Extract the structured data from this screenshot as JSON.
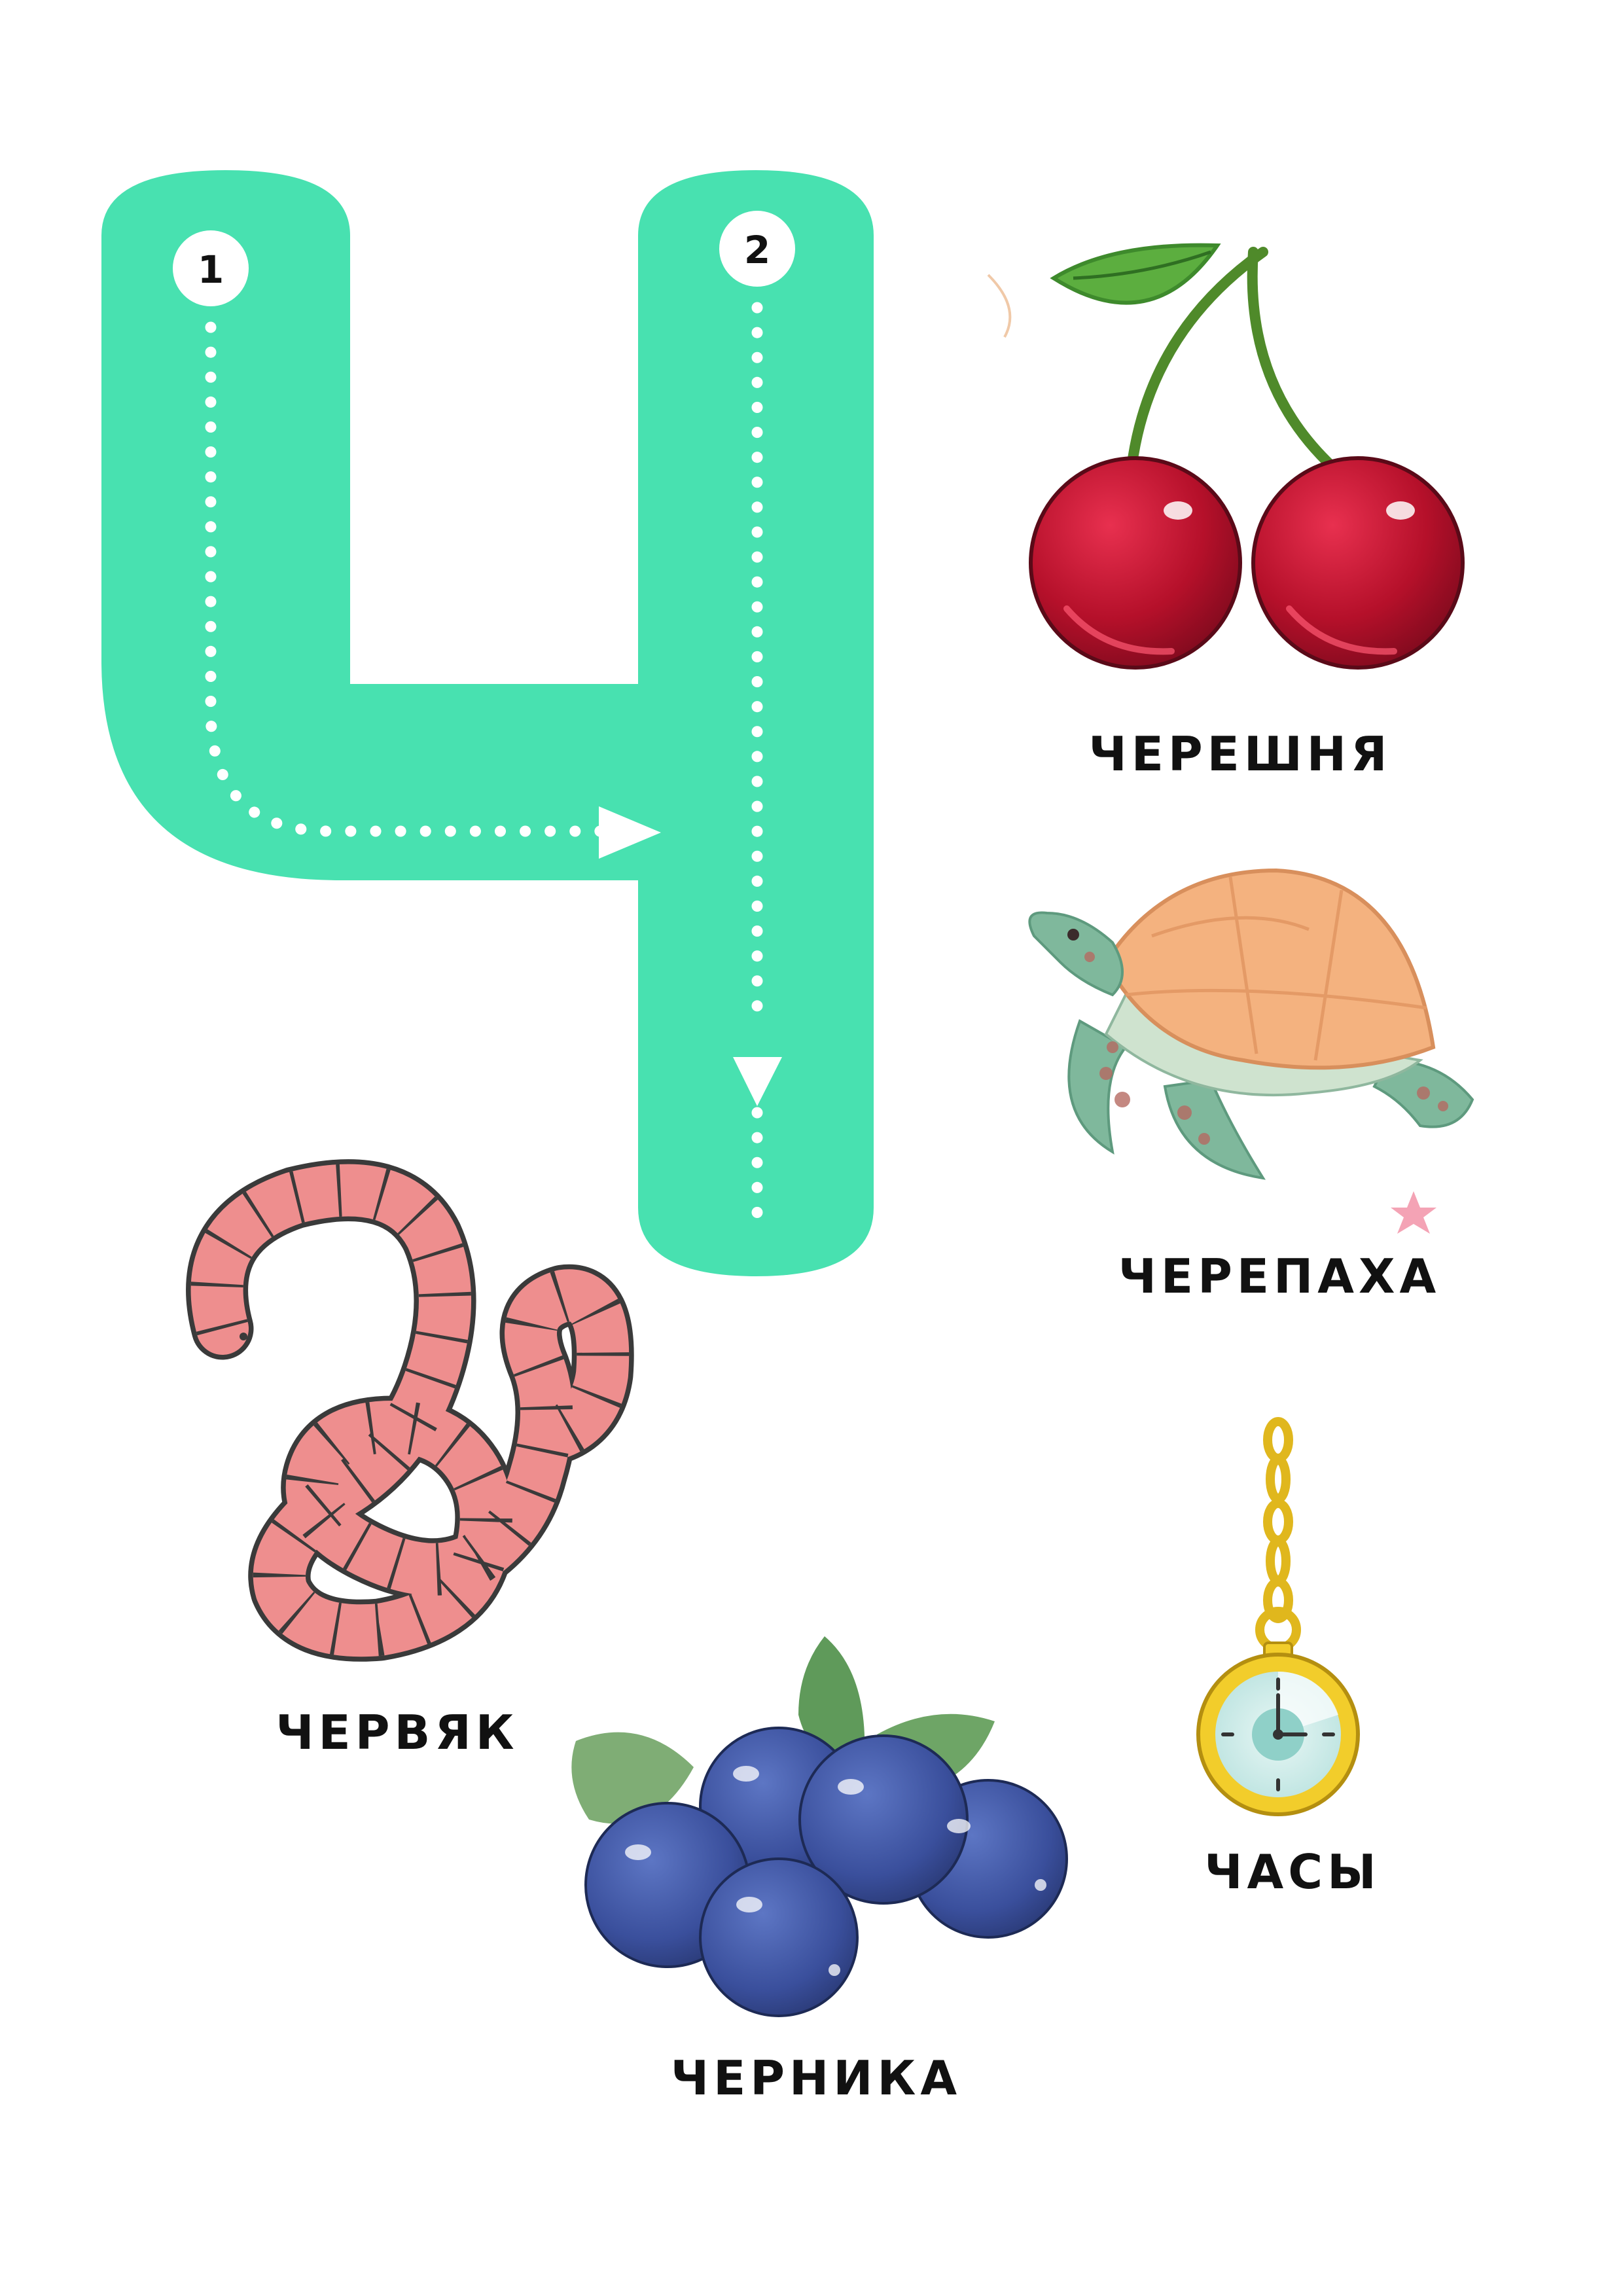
{
  "letter": {
    "color": "#48e1b0",
    "guide_color": "#ffffff",
    "step_labels": [
      "1",
      "2"
    ]
  },
  "words": {
    "cherry": "ЧЕРЕШНЯ",
    "turtle": "ЧЕРЕПАХА",
    "worm": "ЧЕРВЯК",
    "blueberry": "ЧЕРНИКА",
    "watch": "ЧАСЫ"
  },
  "pictures": {
    "cherry": "cherries-icon",
    "turtle": "sea-turtle-icon",
    "worm": "worm-icon",
    "blueberry": "blueberries-icon",
    "watch": "pocket-watch-icon"
  }
}
